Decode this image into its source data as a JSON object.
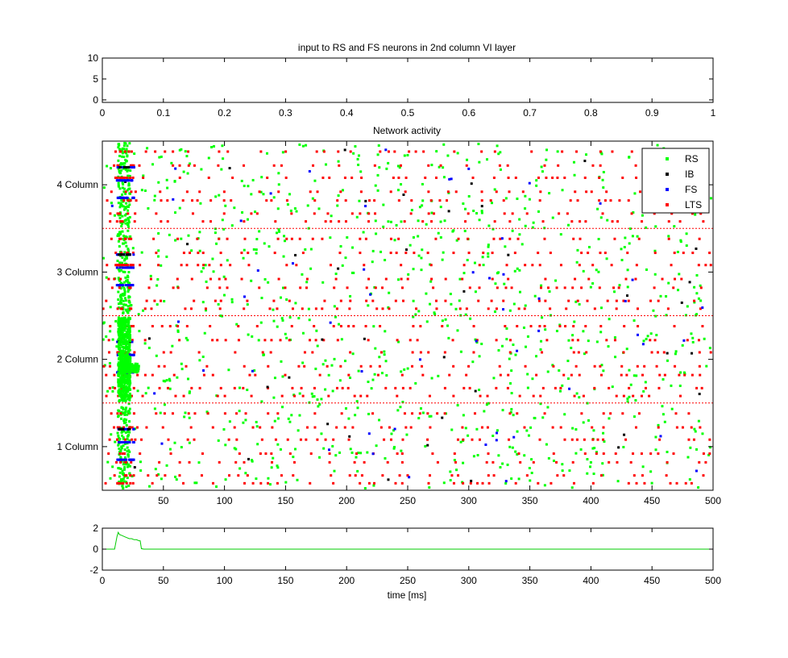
{
  "figure": {
    "background": "#ffffff"
  },
  "colors": {
    "RS": "#00ff00",
    "IB": "#000000",
    "FS": "#0000ff",
    "LTS": "#ff0000",
    "separator": "#ff0000",
    "trace": "#00cc00"
  },
  "chart_data": [
    {
      "type": "line",
      "title": "input to RS and FS neurons in 2nd column VI layer",
      "xlim": [
        0,
        1
      ],
      "ylim": [
        -0.6,
        10
      ],
      "xticks": [
        "0",
        "0.1",
        "0.2",
        "0.3",
        "0.4",
        "0.5",
        "0.6",
        "0.7",
        "0.8",
        "0.9",
        "1"
      ],
      "yticks": [
        "0",
        "5",
        "10"
      ],
      "series": []
    },
    {
      "type": "scatter",
      "title": "Network activity",
      "xlim": [
        0,
        500
      ],
      "ylim": [
        0.5,
        4.5
      ],
      "xticks": [
        "50",
        "100",
        "150",
        "200",
        "250",
        "300",
        "350",
        "400",
        "450",
        "500"
      ],
      "yticks": [
        "1 Column",
        "2 Column",
        "3 Column",
        "4 Column"
      ],
      "ytick_values": [
        1,
        2,
        3,
        4
      ],
      "column_separators": [
        1.5,
        2.5,
        3.5,
        4.5
      ],
      "legend": {
        "placement": "top-right",
        "entries": [
          "RS",
          "IB",
          "FS",
          "LTS"
        ]
      },
      "note": "spike raster; RS scattered throughout, LTS on regular rows, dense burst at 13–24 ms",
      "series": [
        {
          "name": "RS",
          "marker": "dot",
          "color": "#00ff00"
        },
        {
          "name": "IB",
          "marker": "dot",
          "color": "#000000"
        },
        {
          "name": "FS",
          "marker": "dot",
          "color": "#0000ff"
        },
        {
          "name": "LTS",
          "marker": "dot",
          "color": "#ff0000"
        }
      ]
    },
    {
      "type": "line",
      "title": "",
      "xlabel": "time [ms]",
      "xlim": [
        0,
        500
      ],
      "ylim": [
        -2,
        2
      ],
      "xticks": [
        "0",
        "50",
        "100",
        "150",
        "200",
        "250",
        "300",
        "350",
        "400",
        "450",
        "500"
      ],
      "yticks": [
        "-2",
        "0",
        "2"
      ],
      "series": [
        {
          "x": [
            0,
            10,
            11,
            12,
            13,
            14,
            16,
            18,
            20,
            22,
            24,
            26,
            28,
            30,
            31,
            32,
            34,
            40,
            60,
            100,
            200,
            300,
            400,
            500
          ],
          "y": [
            0,
            0,
            0.6,
            1.2,
            1.6,
            1.4,
            1.3,
            1.2,
            1.1,
            1.0,
            1.0,
            0.9,
            0.9,
            0.8,
            0.8,
            0.05,
            0,
            0,
            0,
            0,
            0,
            0,
            0,
            0
          ]
        }
      ]
    }
  ]
}
